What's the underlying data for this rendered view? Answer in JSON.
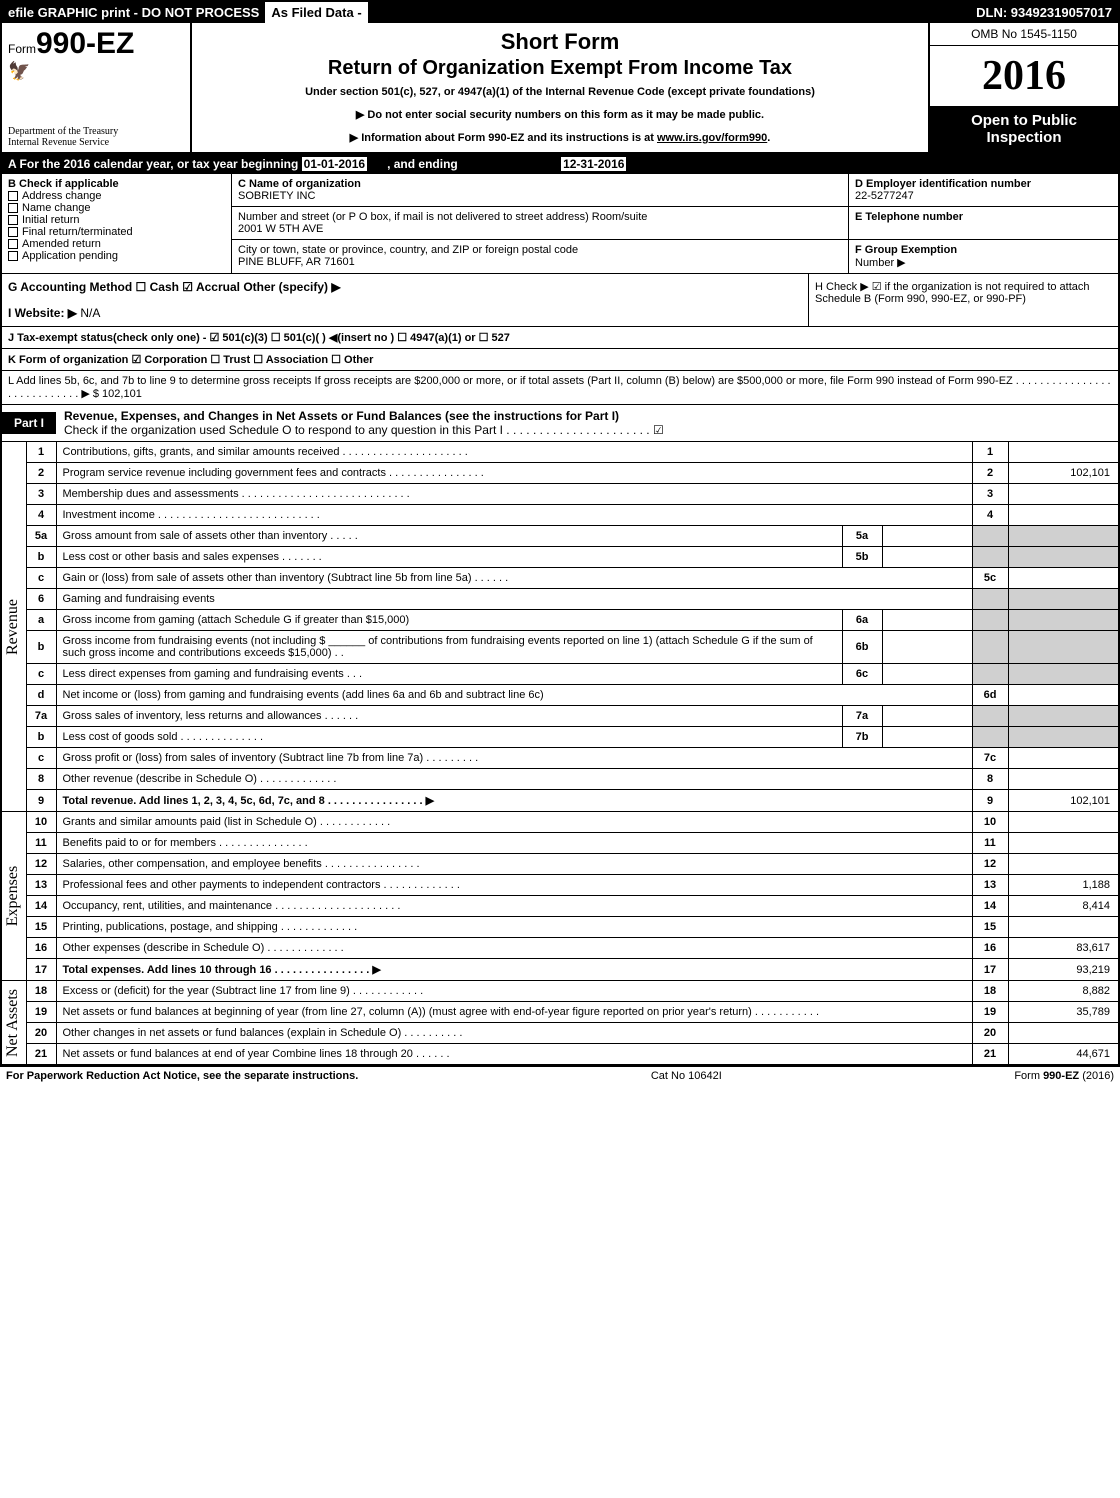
{
  "top": {
    "efile": "efile GRAPHIC print - DO NOT PROCESS",
    "asFiled": "As Filed Data -",
    "dln": "DLN: 93492319057017"
  },
  "header": {
    "formPrefix": "Form",
    "formNo": "990-EZ",
    "dept1": "Department of the Treasury",
    "dept2": "Internal Revenue Service",
    "title1": "Short Form",
    "title2": "Return of Organization Exempt From Income Tax",
    "sub1": "Under section 501(c), 527, or 4947(a)(1) of the Internal Revenue Code (except private foundations)",
    "sub2": "▶ Do not enter social security numbers on this form as it may be made public.",
    "sub3": "▶ Information about Form 990-EZ and its instructions is at ",
    "subLink": "www.irs.gov/form990",
    "omb": "OMB No 1545-1150",
    "year": "2016",
    "inspect1": "Open to Public",
    "inspect2": "Inspection"
  },
  "lineA": {
    "prefix": "A  For the 2016 calendar year, or tax year beginning ",
    "begin": "01-01-2016",
    "mid": ", and ending ",
    "end": "12-31-2016"
  },
  "sectionB": {
    "bLabel": "B  Check if applicable",
    "opts": [
      "Address change",
      "Name change",
      "Initial return",
      "Final return/terminated",
      "Amended return",
      "Application pending"
    ],
    "cLabel": "C Name of organization",
    "cName": "SOBRIETY INC",
    "street": "Number and street (or P O box, if mail is not delivered to street address)  Room/suite",
    "streetVal": "2001 W 5TH AVE",
    "city": "City or town, state or province, country, and ZIP or foreign postal code",
    "cityVal": "PINE BLUFF, AR  71601",
    "dLabel": "D Employer identification number",
    "dVal": "22-5277247",
    "eLabel": "E Telephone number",
    "fLabel": "F Group Exemption",
    "fLabel2": "Number    ▶"
  },
  "rowG": {
    "g": "G Accounting Method    ☐ Cash   ☑ Accrual   Other (specify) ▶ ",
    "h": "H   Check ▶   ☑  if the organization is not required to attach Schedule B (Form 990, 990-EZ, or 990-PF)",
    "i": "I Website: ▶",
    "iVal": "N/A",
    "j": "J Tax-exempt status(check only one) - ☑ 501(c)(3)  ☐ 501(c)( ) ◀(insert no ) ☐ 4947(a)(1) or ☐ 527",
    "k": "K Form of organization    ☑ Corporation   ☐ Trust   ☐ Association   ☐ Other ",
    "l": "L Add lines 5b, 6c, and 7b to line 9 to determine gross receipts  If gross receipts are $200,000 or more, or if total assets (Part II, column (B) below) are $500,000 or more, file Form 990 instead of Form 990-EZ  . . . . . . . . . . . . . . . . . . . . . . . . . . . . ▶ $ ",
    "lVal": "102,101"
  },
  "part1": {
    "tag": "Part I",
    "title": "Revenue, Expenses, and Changes in Net Assets or Fund Balances (see the instructions for Part I)",
    "sub": "Check if the organization used Schedule O to respond to any question in this Part I . . . . . . . . . . . . . . . . . . . . . .  ☑"
  },
  "sideLabels": {
    "rev": "Revenue",
    "exp": "Expenses",
    "na": "Net Assets"
  },
  "rows": [
    {
      "n": "1",
      "t": "Contributions, gifts, grants, and similar amounts received . . . . . . . . . . . . . . . . . . . . .",
      "rn": "1",
      "rv": ""
    },
    {
      "n": "2",
      "t": "Program service revenue including government fees and contracts . . . . . . . . . . . . . . . .",
      "rn": "2",
      "rv": "102,101"
    },
    {
      "n": "3",
      "t": "Membership dues and assessments . . . . . . . . . . . . . . . . . . . . . . . . . . . .",
      "rn": "3",
      "rv": ""
    },
    {
      "n": "4",
      "t": "Investment income . . . . . . . . . . . . . . . . . . . . . . . . . . .",
      "rn": "4",
      "rv": ""
    },
    {
      "n": "5a",
      "t": "Gross amount from sale of assets other than inventory . . . . .",
      "mn": "5a",
      "mv": ""
    },
    {
      "n": "b",
      "t": "Less  cost or other basis and sales expenses . . . . . . .",
      "mn": "5b",
      "mv": ""
    },
    {
      "n": "c",
      "t": "Gain or (loss) from sale of assets other than inventory (Subtract line 5b from line 5a) . . . . . .",
      "rn": "5c",
      "rv": ""
    },
    {
      "n": "6",
      "t": "Gaming and fundraising events"
    },
    {
      "n": "a",
      "t": "Gross income from gaming (attach Schedule G if greater than $15,000)",
      "mn": "6a",
      "mv": ""
    },
    {
      "n": "b",
      "t": "Gross income from fundraising events (not including $ ______ of contributions from fundraising events reported on line 1) (attach Schedule G if the sum of such gross income and contributions exceeds $15,000)   . .",
      "mn": "6b",
      "mv": ""
    },
    {
      "n": "c",
      "t": "Less  direct expenses from gaming and fundraising events    . . .",
      "mn": "6c",
      "mv": ""
    },
    {
      "n": "d",
      "t": "Net income or (loss) from gaming and fundraising events (add lines 6a and 6b and subtract line 6c)",
      "rn": "6d",
      "rv": ""
    },
    {
      "n": "7a",
      "t": "Gross sales of inventory, less returns and allowances . . . . . .",
      "mn": "7a",
      "mv": ""
    },
    {
      "n": "b",
      "t": "Less  cost of goods sold        . . . . . . . . . . . . . .",
      "mn": "7b",
      "mv": ""
    },
    {
      "n": "c",
      "t": "Gross profit or (loss) from sales of inventory (Subtract line 7b from line 7a) . . . . . . . . .",
      "rn": "7c",
      "rv": ""
    },
    {
      "n": "8",
      "t": "Other revenue (describe in Schedule O)                  . . . . . . . . . . . . .",
      "rn": "8",
      "rv": ""
    },
    {
      "n": "9",
      "t": "Total revenue. Add lines 1, 2, 3, 4, 5c, 6d, 7c, and 8 . . . . . . . . . . . . . . . .  ▶",
      "rn": "9",
      "rv": "102,101",
      "bold": true
    },
    {
      "n": "10",
      "t": "Grants and similar amounts paid (list in Schedule O)        . . . . . . . . . . . .",
      "rn": "10",
      "rv": ""
    },
    {
      "n": "11",
      "t": "Benefits paid to or for members              . . . . . . . . . . . . . . .",
      "rn": "11",
      "rv": ""
    },
    {
      "n": "12",
      "t": "Salaries, other compensation, and employee benefits . . . . . . . . . . . . . . . .",
      "rn": "12",
      "rv": ""
    },
    {
      "n": "13",
      "t": "Professional fees and other payments to independent contractors  . . . . . . . . . . . . .",
      "rn": "13",
      "rv": "1,188"
    },
    {
      "n": "14",
      "t": "Occupancy, rent, utilities, and maintenance . . . . . . . . . . . . . . . . . . . . .",
      "rn": "14",
      "rv": "8,414"
    },
    {
      "n": "15",
      "t": "Printing, publications, postage, and shipping          . . . . . . . . . . . . .",
      "rn": "15",
      "rv": ""
    },
    {
      "n": "16",
      "t": "Other expenses (describe in Schedule O)           . . . . . . . . . . . . .",
      "rn": "16",
      "rv": "83,617"
    },
    {
      "n": "17",
      "t": "Total expenses. Add lines 10 through 16       . . . . . . . . . . . . . . . .  ▶",
      "rn": "17",
      "rv": "93,219",
      "bold": true
    },
    {
      "n": "18",
      "t": "Excess or (deficit) for the year (Subtract line 17 from line 9)     . . . . . . . . . . . .",
      "rn": "18",
      "rv": "8,882"
    },
    {
      "n": "19",
      "t": "Net assets or fund balances at beginning of year (from line 27, column (A)) (must agree with end-of-year figure reported on prior year's return)          . . . . . . . . . . .",
      "rn": "19",
      "rv": "35,789"
    },
    {
      "n": "20",
      "t": "Other changes in net assets or fund balances (explain in Schedule O)   . . . . . . . . . .",
      "rn": "20",
      "rv": ""
    },
    {
      "n": "21",
      "t": "Net assets or fund balances at end of year  Combine lines 18 through 20       . . . . . .",
      "rn": "21",
      "rv": "44,671"
    }
  ],
  "footer": {
    "l": "For Paperwork Reduction Act Notice, see the separate instructions.",
    "m": "Cat No 10642I",
    "r": "Form 990-EZ (2016)"
  }
}
